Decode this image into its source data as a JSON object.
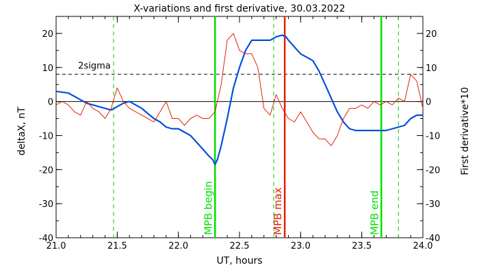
{
  "chart_data": {
    "type": "line",
    "title": "X-variations and first derivative, 30.03.2022",
    "xlabel": "UT, hours",
    "ylabel_left": "deltaX, nT",
    "ylabel_right": "First derivative*10",
    "xlim": [
      21.0,
      24.0
    ],
    "ylim_left": [
      -40,
      25
    ],
    "ylim_right": [
      -40,
      25
    ],
    "x_ticks": [
      "21.0",
      "21.5",
      "22.0",
      "22.5",
      "23.0",
      "23.5",
      "24.0"
    ],
    "y_ticks": [
      "20",
      "10",
      "0",
      "-10",
      "-20",
      "-30",
      "-40"
    ],
    "grid": false,
    "sigma_level": 8,
    "sigma_label": "2sigma",
    "series": [
      {
        "name": "deltaX, nT",
        "color": "#0050dc",
        "axis": "left",
        "x": [
          21.0,
          21.1,
          21.15,
          21.2,
          21.25,
          21.3,
          21.35,
          21.4,
          21.45,
          21.5,
          21.55,
          21.6,
          21.65,
          21.7,
          21.75,
          21.8,
          21.85,
          21.9,
          21.95,
          22.0,
          22.05,
          22.1,
          22.15,
          22.2,
          22.25,
          22.28,
          22.3,
          22.32,
          22.35,
          22.4,
          22.45,
          22.5,
          22.55,
          22.6,
          22.65,
          22.7,
          22.75,
          22.8,
          22.85,
          22.88,
          22.9,
          22.95,
          23.0,
          23.05,
          23.1,
          23.15,
          23.2,
          23.25,
          23.3,
          23.35,
          23.4,
          23.45,
          23.5,
          23.55,
          23.6,
          23.65,
          23.7,
          23.75,
          23.8,
          23.85,
          23.9,
          23.95,
          24.0
        ],
        "values": [
          3,
          2.5,
          1.5,
          0.5,
          -0.5,
          -1,
          -1.5,
          -2,
          -2.5,
          -1.5,
          -0.5,
          0,
          -1,
          -2,
          -3.5,
          -5,
          -6,
          -7.5,
          -8,
          -8,
          -9,
          -10,
          -12,
          -14,
          -16,
          -17,
          -18.5,
          -17,
          -13,
          -5,
          4,
          10,
          15,
          18,
          18,
          18,
          18,
          19,
          19.5,
          19,
          18,
          16,
          14,
          13,
          12,
          9,
          5,
          1,
          -3,
          -6,
          -8,
          -8.5,
          -8.5,
          -8.5,
          -8.5,
          -8.5,
          -8.5,
          -8,
          -7.5,
          -7,
          -5,
          -4,
          -4
        ]
      },
      {
        "name": "First derivative*10",
        "color": "#e02000",
        "axis": "right",
        "x": [
          21.0,
          21.05,
          21.1,
          21.15,
          21.2,
          21.25,
          21.3,
          21.35,
          21.4,
          21.45,
          21.5,
          21.55,
          21.6,
          21.65,
          21.7,
          21.75,
          21.8,
          21.85,
          21.9,
          21.95,
          22.0,
          22.05,
          22.1,
          22.15,
          22.2,
          22.25,
          22.3,
          22.35,
          22.4,
          22.45,
          22.5,
          22.55,
          22.6,
          22.65,
          22.7,
          22.75,
          22.8,
          22.85,
          22.9,
          22.95,
          23.0,
          23.05,
          23.1,
          23.15,
          23.2,
          23.25,
          23.3,
          23.35,
          23.4,
          23.45,
          23.5,
          23.55,
          23.6,
          23.65,
          23.7,
          23.75,
          23.8,
          23.85,
          23.9,
          23.95,
          24.0
        ],
        "values": [
          -1,
          0,
          -1,
          -3,
          -4,
          0,
          -2,
          -3,
          -5,
          -2,
          4,
          0,
          -2,
          -3,
          -4,
          -5,
          -6,
          -3,
          0,
          -5,
          -5,
          -7,
          -5,
          -4,
          -5,
          -5,
          -3,
          5,
          18,
          20,
          15,
          14,
          14,
          10,
          -2,
          -4,
          2,
          -2,
          -5,
          -6,
          -3,
          -6,
          -9,
          -11,
          -11,
          -13,
          -10,
          -5,
          -2,
          -2,
          -1,
          -2,
          0,
          -1,
          0,
          -1,
          1,
          0,
          8,
          6,
          -2
        ]
      }
    ],
    "vertical_markers": [
      {
        "x": 21.47,
        "color": "#00c800",
        "style": "dashed",
        "label": ""
      },
      {
        "x": 22.3,
        "color": "#00e000",
        "style": "solid",
        "label": "MPB begin"
      },
      {
        "x": 22.78,
        "color": "#00c800",
        "style": "dashed",
        "label": ""
      },
      {
        "x": 22.87,
        "color": "#e02000",
        "style": "solid",
        "label": "MPB max"
      },
      {
        "x": 23.66,
        "color": "#00e000",
        "style": "solid",
        "label": "MPB end"
      },
      {
        "x": 23.8,
        "color": "#00c800",
        "style": "dashed",
        "label": ""
      }
    ]
  }
}
